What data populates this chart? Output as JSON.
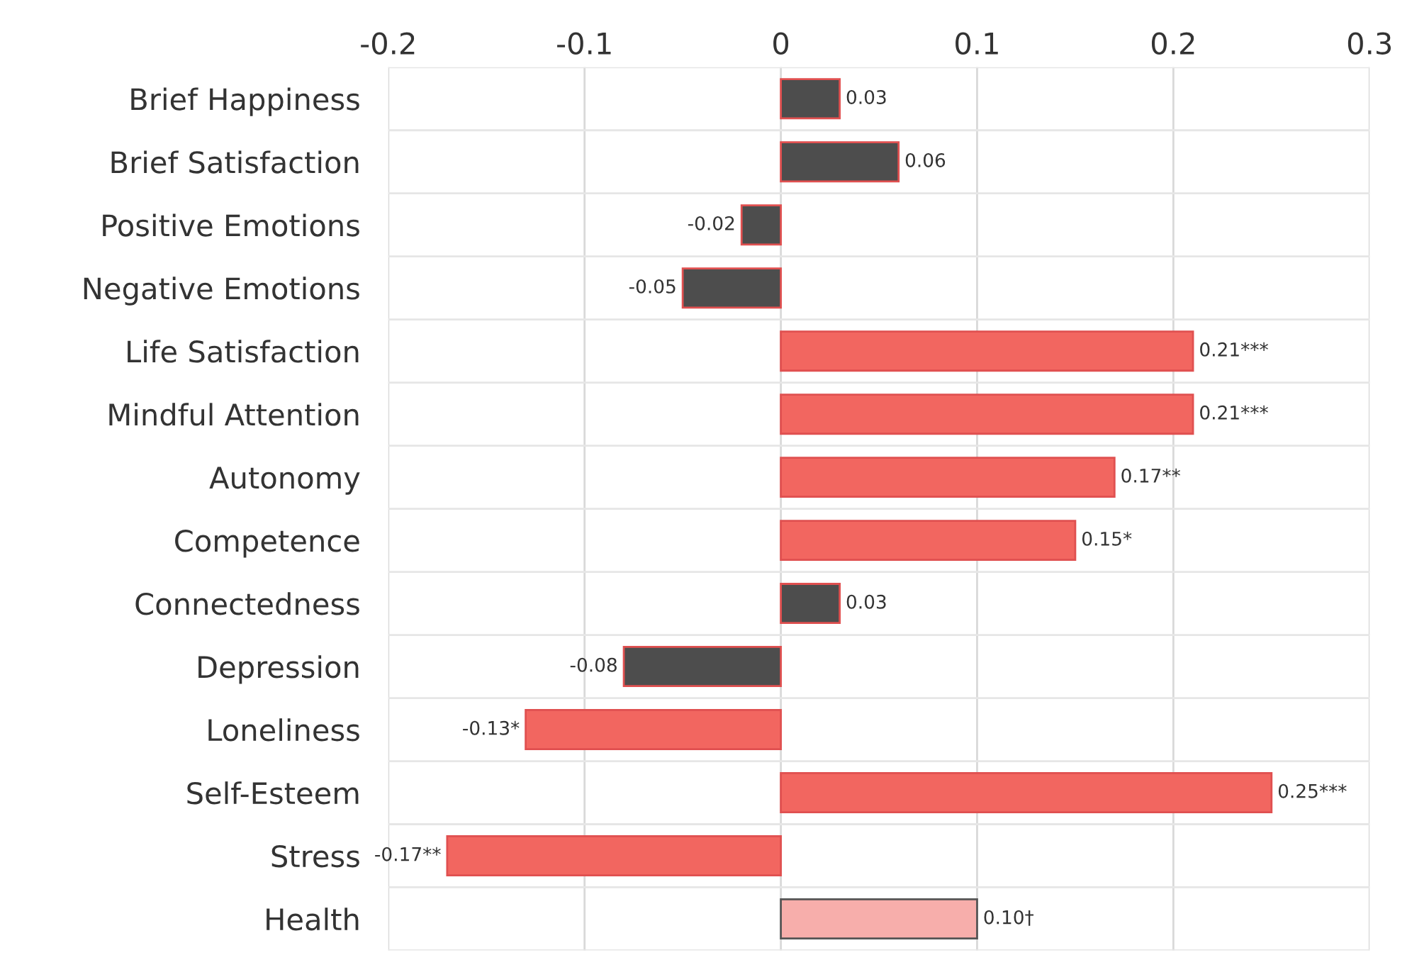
{
  "chart_data": {
    "type": "bar",
    "orientation": "horizontal",
    "categories": [
      "Brief Happiness",
      "Brief Satisfaction",
      "Positive Emotions",
      "Negative Emotions",
      "Life Satisfaction",
      "Mindful Attention",
      "Autonomy",
      "Competence",
      "Connectedness",
      "Depression",
      "Loneliness",
      "Self-Esteem",
      "Stress",
      "Health"
    ],
    "values": [
      0.03,
      0.06,
      -0.02,
      -0.05,
      0.21,
      0.21,
      0.17,
      0.15,
      0.03,
      -0.08,
      -0.13,
      0.25,
      -0.17,
      0.1
    ],
    "value_labels": [
      "0.03",
      "0.06",
      "-0.02",
      "-0.05",
      "0.21***",
      "0.21***",
      "0.17**",
      "0.15*",
      "0.03",
      "-0.08",
      "-0.13*",
      "0.25***",
      "-0.17**",
      "0.10†"
    ],
    "colors": [
      "#4d4d4d",
      "#4d4d4d",
      "#4d4d4d",
      "#4d4d4d",
      "#f26660",
      "#f26660",
      "#f26660",
      "#f26660",
      "#4d4d4d",
      "#4d4d4d",
      "#f26660",
      "#f26660",
      "#f26660",
      "#f7aeab"
    ],
    "xlim": [
      -0.2,
      0.3
    ],
    "xticks": [
      -0.2,
      -0.1,
      0,
      0.1,
      0.2,
      0.3
    ],
    "grid": true,
    "legend": false
  }
}
